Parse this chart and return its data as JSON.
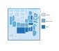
{
  "background_color": "#ffffff",
  "map_bg_color": "#cde4f5",
  "border_color": "#6aaed6",
  "state_edge_color": "#ffffff",
  "legend_colors": [
    "#c6dcee",
    "#6aaed6",
    "#2171b5"
  ],
  "legend_labels": [
    "Fewest",
    "Moderate",
    "Most"
  ],
  "state_colors": {
    "AL": "#2171b5",
    "AK": "#c6dcee",
    "AZ": "#6aaed6",
    "AR": "#6aaed6",
    "CA": "#6aaed6",
    "CO": "#c6dcee",
    "CT": "#c6dcee",
    "DE": "#2171b5",
    "FL": "#6aaed6",
    "GA": "#6aaed6",
    "HI": "#c6dcee",
    "ID": "#c6dcee",
    "IL": "#6aaed6",
    "IN": "#2171b5",
    "IA": "#c6dcee",
    "KS": "#c6dcee",
    "KY": "#6aaed6",
    "LA": "#2171b5",
    "ME": "#c6dcee",
    "MD": "#6aaed6",
    "MA": "#c6dcee",
    "MI": "#6aaed6",
    "MN": "#c6dcee",
    "MS": "#2171b5",
    "MO": "#6aaed6",
    "MT": "#c6dcee",
    "NE": "#c6dcee",
    "NV": "#6aaed6",
    "NH": "#c6dcee",
    "NJ": "#6aaed6",
    "NM": "#6aaed6",
    "NY": "#6aaed6",
    "NC": "#6aaed6",
    "ND": "#c6dcee",
    "OH": "#6aaed6",
    "OK": "#6aaed6",
    "OR": "#c6dcee",
    "PA": "#6aaed6",
    "RI": "#c6dcee",
    "SC": "#6aaed6",
    "SD": "#c6dcee",
    "TN": "#2171b5",
    "TX": "#2171b5",
    "UT": "#c6dcee",
    "VT": "#c6dcee",
    "VA": "#6aaed6",
    "WA": "#c6dcee",
    "WV": "#6aaed6",
    "WI": "#c6dcee",
    "WY": "#c6dcee"
  }
}
